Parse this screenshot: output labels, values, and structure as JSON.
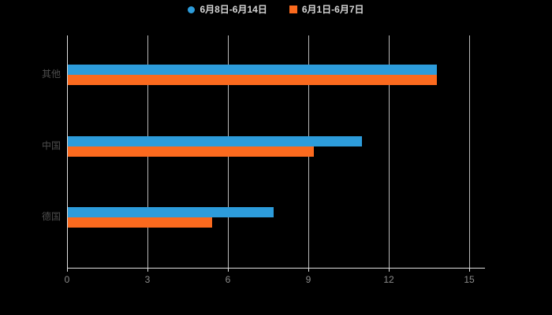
{
  "page": {
    "background": "#000000"
  },
  "legend": {
    "items": [
      {
        "label": "6月8日-6月14日",
        "color": "#2D9CDB",
        "marker": "circle"
      },
      {
        "label": "6月1日-6月7日",
        "color": "#FB6A1E",
        "marker": "square"
      }
    ]
  },
  "chart_data": {
    "type": "bar",
    "orientation": "horizontal",
    "title": "",
    "categories": [
      "其他",
      "中国",
      "德国"
    ],
    "series": [
      {
        "name": "6月8日-6月14日",
        "color": "#2D9CDB",
        "values": [
          13.8,
          11.0,
          7.7
        ]
      },
      {
        "name": "6月1日-6月7日",
        "color": "#FB6A1E",
        "values": [
          13.8,
          9.2,
          5.4
        ]
      }
    ],
    "x_axis": {
      "min": 0,
      "max": 15,
      "ticks": [
        0,
        3,
        6,
        9,
        12,
        15
      ]
    },
    "y_axis": {
      "label": ""
    },
    "grid": true,
    "legend_position": "top",
    "axis_color": "#e0e0e0",
    "grid_color": "#d9d9d9",
    "category_label_color": "#4d4d4d",
    "tick_label_color": "#8c8c8c"
  }
}
